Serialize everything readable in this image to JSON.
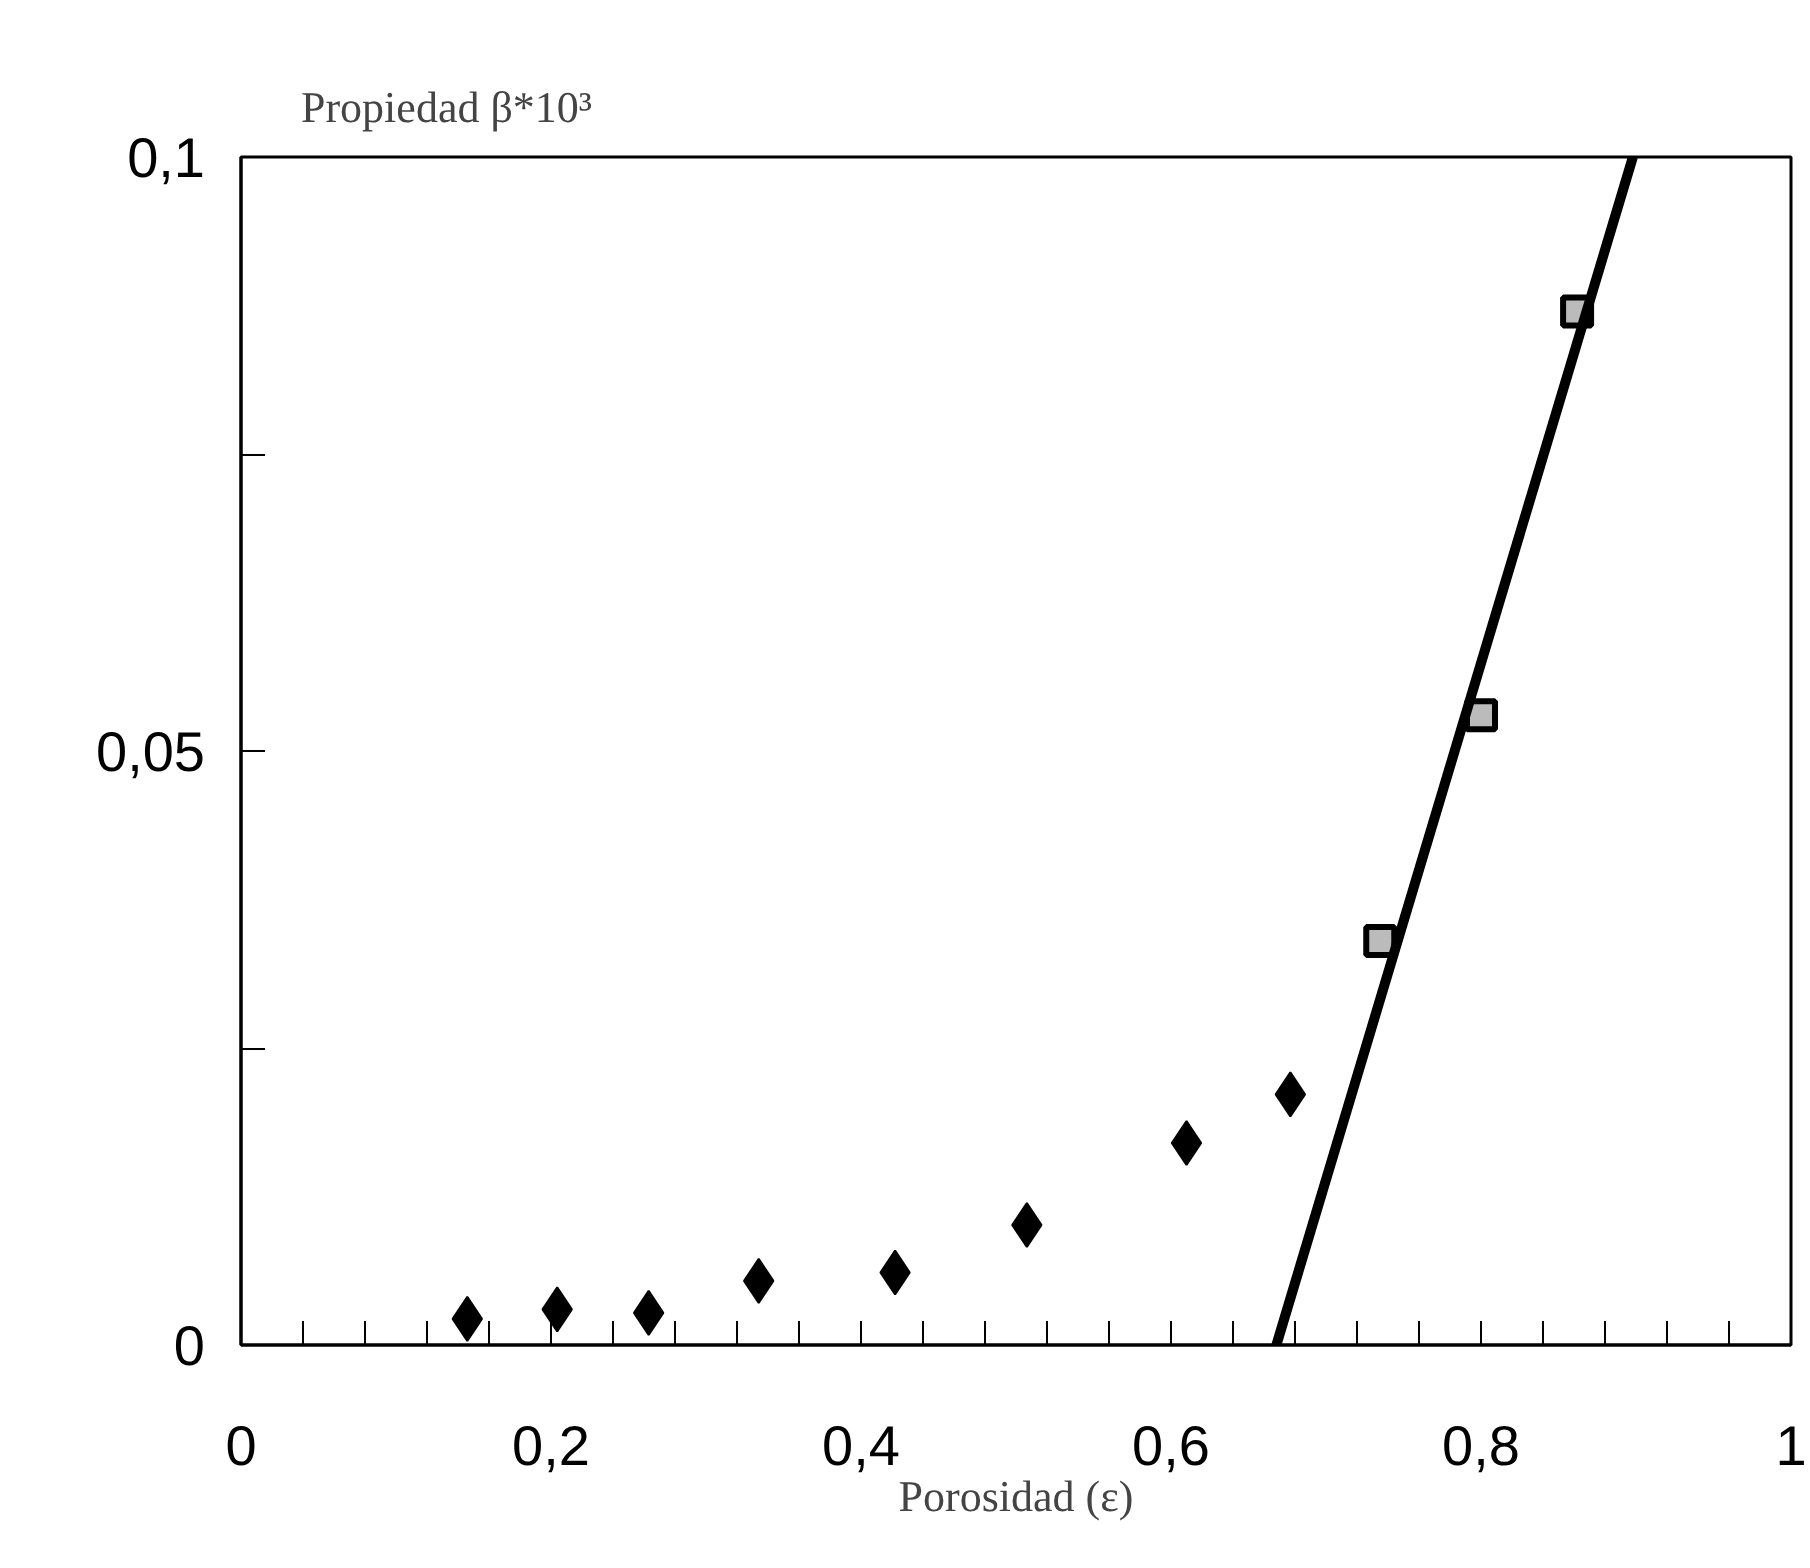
{
  "chart_data": {
    "type": "scatter",
    "xlabel": "Porosidad (ε)",
    "ylabel": "Propiedad β*10³",
    "xlim": [
      0,
      1
    ],
    "ylim": [
      0,
      0.1
    ],
    "xticks": [
      0,
      {
        "value": 0.04,
        "label": null
      },
      {
        "value": 0.08,
        "label": null
      },
      {
        "value": 0.12,
        "label": null
      },
      {
        "value": 0.16,
        "label": null
      },
      {
        "value": 0.2,
        "label": "0,2"
      },
      {
        "value": 0.24,
        "label": null
      },
      {
        "value": 0.28,
        "label": null
      },
      {
        "value": 0.32,
        "label": null
      },
      {
        "value": 0.36,
        "label": null
      },
      {
        "value": 0.4,
        "label": "0,4"
      },
      {
        "value": 0.44,
        "label": null
      },
      {
        "value": 0.48,
        "label": null
      },
      {
        "value": 0.52,
        "label": null
      },
      {
        "value": 0.56,
        "label": null
      },
      {
        "value": 0.6,
        "label": "0,6"
      },
      {
        "value": 0.64,
        "label": null
      },
      {
        "value": 0.68,
        "label": null
      },
      {
        "value": 0.72,
        "label": null
      },
      {
        "value": 0.76,
        "label": null
      },
      {
        "value": 0.8,
        "label": "0,8"
      },
      {
        "value": 0.84,
        "label": null
      },
      {
        "value": 0.88,
        "label": null
      },
      {
        "value": 0.92,
        "label": null
      },
      {
        "value": 0.96,
        "label": null
      },
      1
    ],
    "yticks": [
      0,
      {
        "value": 0.025,
        "label": null
      },
      {
        "value": 0.05,
        "label": "0,05"
      },
      {
        "value": 0.075,
        "label": null
      },
      {
        "value": 0.1,
        "label": "0,1"
      }
    ],
    "grid": false,
    "series": [
      {
        "marker": "diamond",
        "color": "#000000",
        "x": [
          0.146,
          0.204,
          0.263,
          0.334,
          0.422,
          0.507,
          0.61,
          0.677
        ],
        "values": [
          0.0022,
          0.003,
          0.0027,
          0.0054,
          0.0061,
          0.0101,
          0.017,
          0.0211
        ]
      },
      {
        "marker": "square",
        "color": "#000000",
        "x": [
          0.735,
          0.8,
          0.862
        ],
        "values": [
          0.034,
          0.053,
          0.087
        ]
      },
      {
        "type": "line",
        "line_style": "solid",
        "color": "#000000",
        "x": [
          0.668,
          0.898
        ],
        "values": [
          0,
          0.1
        ]
      }
    ]
  }
}
